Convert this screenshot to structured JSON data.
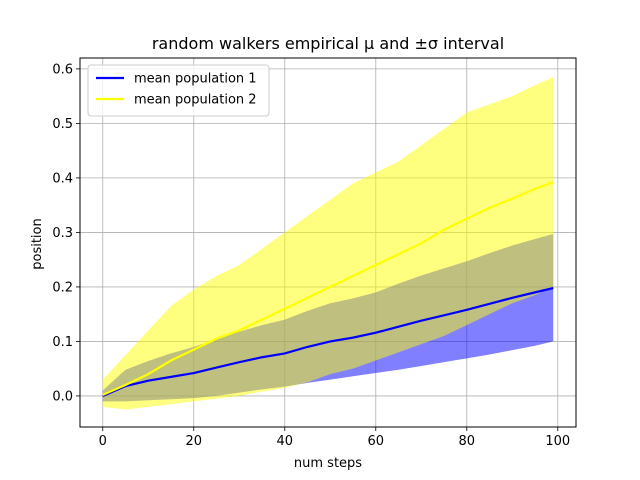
{
  "chart_data": {
    "type": "line",
    "title": "random walkers empirical μ and ±σ interval",
    "xlabel": "num steps",
    "ylabel": "position",
    "xlim": [
      -5,
      104
    ],
    "ylim": [
      -0.057,
      0.62
    ],
    "xticks": [
      0,
      20,
      40,
      60,
      80,
      100
    ],
    "yticks": [
      0.0,
      0.1,
      0.2,
      0.3,
      0.4,
      0.5,
      0.6
    ],
    "grid": true,
    "legend_position": "upper-left",
    "series": [
      {
        "name": "mean population 1",
        "color": "#0000ff",
        "band_color": "#0000ff",
        "x": [
          0,
          5,
          10,
          15,
          20,
          25,
          30,
          35,
          40,
          45,
          50,
          55,
          60,
          65,
          70,
          75,
          80,
          85,
          90,
          95,
          99
        ],
        "mean": [
          0.0,
          0.018,
          0.028,
          0.035,
          0.042,
          0.052,
          0.062,
          0.071,
          0.078,
          0.09,
          0.1,
          0.107,
          0.116,
          0.127,
          0.138,
          0.148,
          0.158,
          0.169,
          0.18,
          0.19,
          0.198
        ],
        "lower": [
          -0.01,
          -0.01,
          -0.008,
          -0.006,
          -0.004,
          0.0,
          0.006,
          0.012,
          0.017,
          0.024,
          0.03,
          0.036,
          0.042,
          0.048,
          0.055,
          0.062,
          0.069,
          0.076,
          0.084,
          0.092,
          0.1
        ],
        "upper": [
          0.01,
          0.048,
          0.064,
          0.078,
          0.09,
          0.104,
          0.118,
          0.13,
          0.14,
          0.156,
          0.17,
          0.179,
          0.19,
          0.206,
          0.221,
          0.234,
          0.247,
          0.262,
          0.276,
          0.288,
          0.297
        ]
      },
      {
        "name": "mean population 2",
        "color": "#ffff00",
        "band_color": "#ffff00",
        "x": [
          0,
          5,
          10,
          15,
          20,
          25,
          30,
          35,
          40,
          45,
          50,
          55,
          60,
          65,
          70,
          75,
          80,
          85,
          90,
          95,
          99
        ],
        "mean": [
          0.002,
          0.02,
          0.04,
          0.065,
          0.085,
          0.105,
          0.12,
          0.14,
          0.16,
          0.18,
          0.2,
          0.22,
          0.24,
          0.26,
          0.28,
          0.305,
          0.325,
          0.345,
          0.362,
          0.38,
          0.392
        ],
        "lower": [
          -0.02,
          -0.025,
          -0.02,
          -0.015,
          -0.01,
          -0.005,
          0.0,
          0.008,
          0.015,
          0.025,
          0.04,
          0.05,
          0.065,
          0.08,
          0.095,
          0.11,
          0.13,
          0.15,
          0.17,
          0.185,
          0.2
        ],
        "upper": [
          0.03,
          0.075,
          0.12,
          0.165,
          0.195,
          0.22,
          0.24,
          0.27,
          0.3,
          0.33,
          0.36,
          0.39,
          0.41,
          0.43,
          0.46,
          0.49,
          0.52,
          0.535,
          0.55,
          0.57,
          0.585
        ]
      }
    ]
  }
}
